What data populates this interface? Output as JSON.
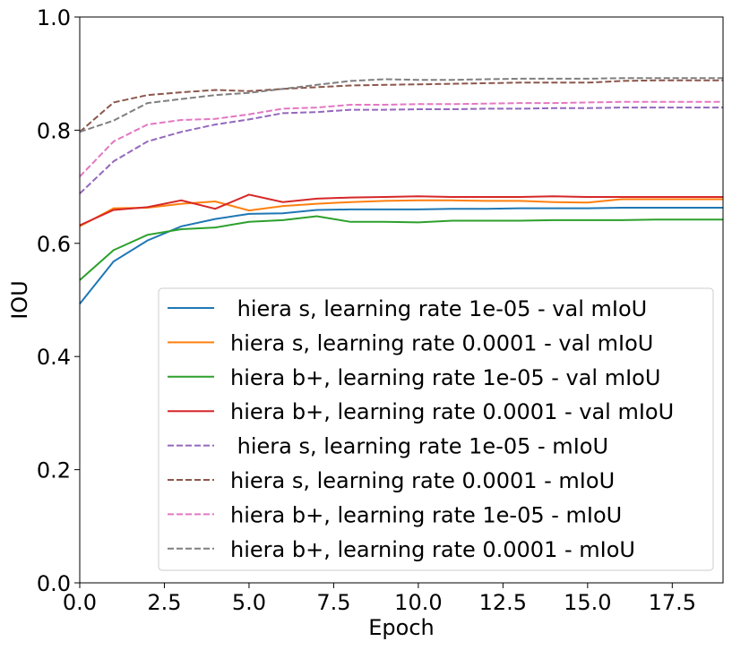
{
  "chart_data": {
    "type": "line",
    "title": "",
    "xlabel": "Epoch",
    "ylabel": "IOU",
    "xlim": [
      0,
      19
    ],
    "ylim": [
      0.0,
      1.0
    ],
    "xticks": [
      0.0,
      2.5,
      5.0,
      7.5,
      10.0,
      12.5,
      15.0,
      17.5
    ],
    "xtick_labels": [
      "0.0",
      "2.5",
      "5.0",
      "7.5",
      "10.0",
      "12.5",
      "15.0",
      "17.5"
    ],
    "yticks": [
      0.0,
      0.2,
      0.4,
      0.6,
      0.8,
      1.0
    ],
    "ytick_labels": [
      "0.0",
      "0.2",
      "0.4",
      "0.6",
      "0.8",
      "1.0"
    ],
    "grid": false,
    "legend_position": "lower-right",
    "x": [
      0,
      1,
      2,
      3,
      4,
      5,
      6,
      7,
      8,
      9,
      10,
      11,
      12,
      13,
      14,
      15,
      16,
      17,
      18,
      19
    ],
    "series": [
      {
        "name": " hiera s, learning rate 1e-05 - val mIoU",
        "color": "#1f77b4",
        "dash": "solid",
        "values": [
          0.493,
          0.568,
          0.605,
          0.63,
          0.643,
          0.652,
          0.653,
          0.659,
          0.66,
          0.66,
          0.66,
          0.661,
          0.661,
          0.662,
          0.662,
          0.662,
          0.663,
          0.663,
          0.663,
          0.663
        ]
      },
      {
        "name": "hiera s, learning rate 0.0001 - val mIoU",
        "color": "#ff7f0e",
        "dash": "solid",
        "values": [
          0.63,
          0.662,
          0.663,
          0.67,
          0.674,
          0.658,
          0.666,
          0.67,
          0.673,
          0.675,
          0.676,
          0.676,
          0.675,
          0.675,
          0.673,
          0.672,
          0.678,
          0.678,
          0.678,
          0.678
        ]
      },
      {
        "name": "hiera b+, learning rate 1e-05 - val mIoU",
        "color": "#2ca02c",
        "dash": "solid",
        "values": [
          0.535,
          0.588,
          0.615,
          0.625,
          0.628,
          0.638,
          0.641,
          0.648,
          0.638,
          0.638,
          0.637,
          0.64,
          0.64,
          0.64,
          0.641,
          0.641,
          0.641,
          0.642,
          0.642,
          0.642
        ]
      },
      {
        "name": "hiera b+, learning rate 0.0001 - val mIoU",
        "color": "#d62728",
        "dash": "solid",
        "values": [
          0.632,
          0.659,
          0.664,
          0.676,
          0.661,
          0.686,
          0.673,
          0.679,
          0.681,
          0.682,
          0.683,
          0.682,
          0.682,
          0.682,
          0.683,
          0.682,
          0.682,
          0.682,
          0.682,
          0.682
        ]
      },
      {
        "name": " hiera s, learning rate 1e-05 - mIoU",
        "color": "#9467bd",
        "dash": "dashed",
        "values": [
          0.688,
          0.745,
          0.78,
          0.797,
          0.81,
          0.819,
          0.83,
          0.832,
          0.836,
          0.836,
          0.837,
          0.837,
          0.838,
          0.838,
          0.839,
          0.839,
          0.84,
          0.84,
          0.84,
          0.84
        ]
      },
      {
        "name": "hiera s, learning rate 0.0001 - mIoU",
        "color": "#8c564b",
        "dash": "dashed",
        "values": [
          0.797,
          0.849,
          0.862,
          0.867,
          0.871,
          0.869,
          0.873,
          0.876,
          0.879,
          0.88,
          0.881,
          0.882,
          0.883,
          0.884,
          0.884,
          0.884,
          0.887,
          0.888,
          0.888,
          0.888
        ]
      },
      {
        "name": "hiera b+, learning rate 1e-05 - mIoU",
        "color": "#e377c2",
        "dash": "dashed",
        "values": [
          0.718,
          0.78,
          0.81,
          0.818,
          0.82,
          0.828,
          0.838,
          0.84,
          0.845,
          0.845,
          0.846,
          0.846,
          0.847,
          0.848,
          0.848,
          0.849,
          0.85,
          0.85,
          0.85,
          0.85
        ]
      },
      {
        "name": "hiera b+, learning rate 0.0001 - mIoU",
        "color": "#7f7f7f",
        "dash": "dashed",
        "values": [
          0.797,
          0.817,
          0.848,
          0.855,
          0.862,
          0.866,
          0.873,
          0.88,
          0.887,
          0.89,
          0.889,
          0.889,
          0.89,
          0.891,
          0.891,
          0.891,
          0.892,
          0.892,
          0.892,
          0.892
        ]
      }
    ]
  }
}
